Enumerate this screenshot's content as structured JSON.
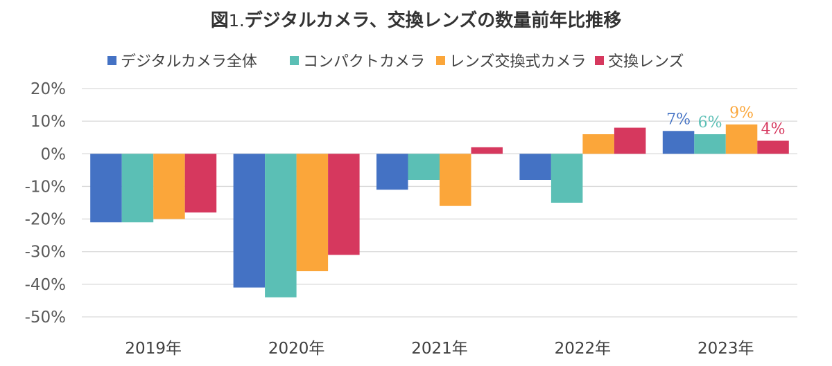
{
  "chart_data": {
    "type": "bar",
    "title_prefix": "図",
    "title_number": "1.",
    "title": "デジタルカメラ、交換レンズの数量前年比推移",
    "categories": [
      "2019年",
      "2020年",
      "2021年",
      "2022年",
      "2023年"
    ],
    "series": [
      {
        "name": "デジタルカメラ全体",
        "color": "#4472C4",
        "values": [
          -21,
          -41,
          -11,
          -8,
          7
        ]
      },
      {
        "name": "コンパクトカメラ",
        "color": "#5BBFB5",
        "values": [
          -21,
          -44,
          -8,
          -15,
          6
        ]
      },
      {
        "name": "レンズ交換式カメラ",
        "color": "#FBA63A",
        "values": [
          -20,
          -36,
          -16,
          6,
          9
        ]
      },
      {
        "name": "交換レンズ",
        "color": "#D6385E",
        "values": [
          -18,
          -31,
          2,
          8,
          4
        ]
      }
    ],
    "ylim": [
      -50,
      20
    ],
    "yticks": [
      20,
      10,
      0,
      -10,
      -20,
      -30,
      -40,
      -50
    ],
    "ytick_labels": [
      "20%",
      "10%",
      "0%",
      "-10%",
      "-20%",
      "-30%",
      "-40%",
      "-50%"
    ],
    "data_labels": [
      {
        "category": "2023年",
        "series": "デジタルカメラ全体",
        "text": "7%"
      },
      {
        "category": "2023年",
        "series": "コンパクトカメラ",
        "text": "6%"
      },
      {
        "category": "2023年",
        "series": "レンズ交換式カメラ",
        "text": "9%"
      },
      {
        "category": "2023年",
        "series": "交換レンズ",
        "text": "4%"
      }
    ],
    "grid": true,
    "legend_position": "top"
  },
  "colors": {
    "grid": "#D9D9D9",
    "text": "#404040"
  }
}
